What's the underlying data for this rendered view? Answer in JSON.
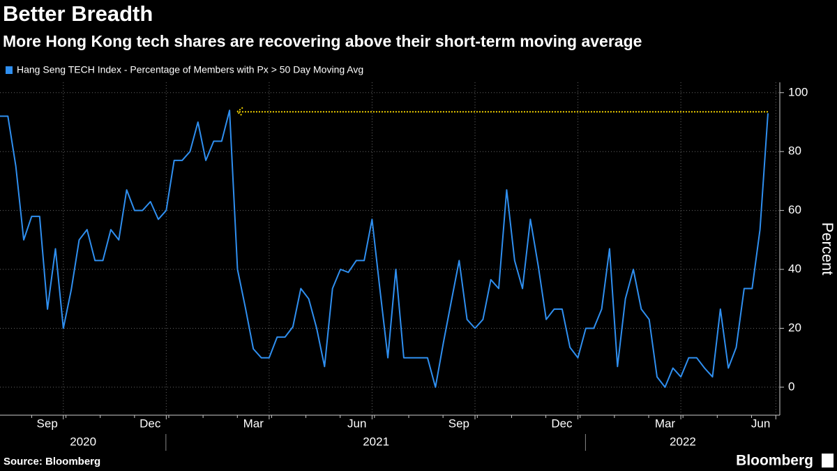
{
  "chart_data": {
    "type": "line",
    "title": "Better Breadth",
    "subtitle": "More Hong Kong tech shares are recovering above their short-term moving average",
    "y_label": "Percent",
    "source": "Source: Bloomberg",
    "logo": "Bloomberg",
    "categories": [
      null,
      null,
      null,
      null,
      null,
      null,
      null,
      null,
      "Sep",
      null,
      null,
      null,
      null,
      null,
      null,
      null,
      null,
      null,
      null,
      null,
      null,
      "Dec",
      null,
      null,
      null,
      null,
      null,
      null,
      null,
      null,
      null,
      null,
      null,
      null,
      "Mar",
      null,
      null,
      null,
      null,
      null,
      null,
      null,
      null,
      null,
      null,
      null,
      null,
      "Jun",
      null,
      null,
      null,
      null,
      null,
      null,
      null,
      null,
      null,
      null,
      null,
      null,
      "Sep",
      null,
      null,
      null,
      null,
      null,
      null,
      null,
      null,
      null,
      null,
      null,
      null,
      "Dec",
      null,
      null,
      null,
      null,
      null,
      null,
      null,
      null,
      null,
      null,
      null,
      null,
      "Mar",
      null,
      null,
      null,
      null,
      null,
      null,
      null,
      null,
      null,
      null,
      null,
      "Jun"
    ],
    "year_labels": [
      "2020",
      "2021",
      "2022"
    ],
    "series": [
      {
        "name": "Hang Seng TECH Index - Percentage of Members with Px > 50 Day Moving Avg",
        "color": "#2f8ff0",
        "values": [
          92,
          92,
          75,
          50,
          58,
          58,
          26.5,
          47,
          20,
          33,
          50,
          53.5,
          43,
          43,
          53.5,
          50,
          67,
          60,
          60,
          63,
          57,
          60,
          77,
          77,
          80,
          90,
          77,
          83.5,
          83.5,
          94,
          40,
          27,
          13,
          10,
          10,
          17,
          17,
          20.5,
          33.5,
          30,
          20,
          7,
          33.5,
          40,
          39,
          43,
          43,
          57,
          33,
          10,
          40,
          10,
          10,
          10,
          10,
          0,
          15,
          29,
          43,
          23,
          20,
          23,
          36.5,
          33.5,
          67,
          43,
          33.5,
          57,
          41,
          23,
          26.5,
          26.5,
          13.5,
          10,
          20,
          20,
          26.5,
          47,
          7,
          30,
          40,
          26.5,
          23,
          3.5,
          0,
          6.5,
          3.5,
          10,
          10,
          6.5,
          3.5,
          26.5,
          6.5,
          13.5,
          33.5,
          33.5,
          53.5,
          93,
          null
        ]
      }
    ],
    "reference_line": {
      "value": 93.5,
      "color": "#f0d000"
    },
    "ylim": [
      -9.5,
      103.5
    ],
    "yticks": [
      0,
      20,
      40,
      60,
      80,
      100
    ],
    "grid": true
  }
}
